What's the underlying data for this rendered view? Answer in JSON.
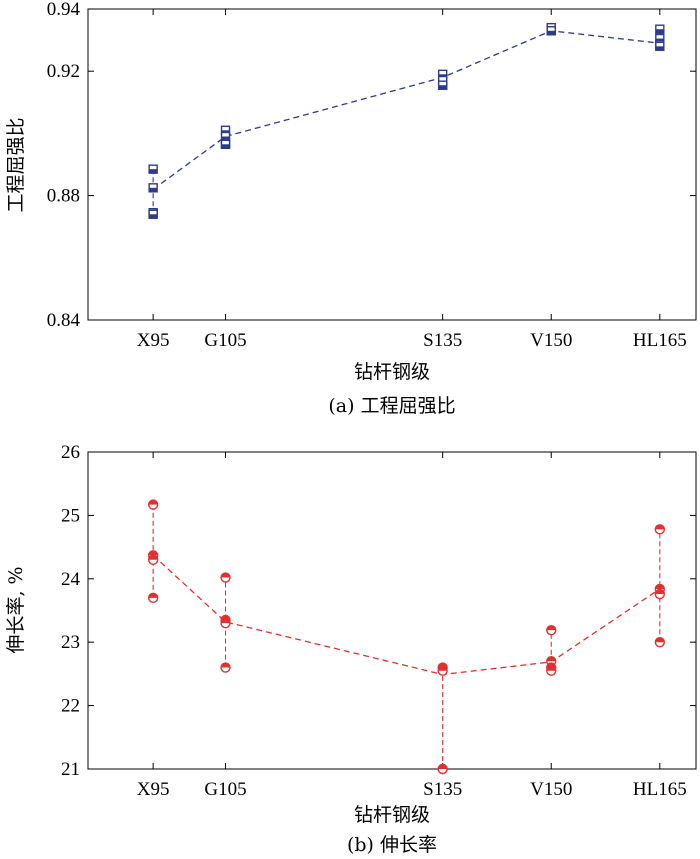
{
  "chart_data": [
    {
      "type": "line",
      "caption": "(a) 工程屈强比",
      "xlabel": "钻杆钢级",
      "ylabel": "工程屈强比",
      "categories": [
        "X95",
        "G105",
        "S135",
        "V150",
        "HL165"
      ],
      "x": [
        95,
        105,
        135,
        150,
        165
      ],
      "xlim": [
        86,
        170
      ],
      "ylim": [
        0.84,
        0.94
      ],
      "yticks": [
        0.84,
        0.88,
        0.92,
        0.94
      ],
      "ytick_labels": [
        "0.84",
        "0.88",
        "0.92",
        "0.94"
      ],
      "grid": false,
      "color": "#2e3a8c",
      "marker": "square",
      "series": [
        {
          "values": [
            0.882,
            0.899,
            0.918,
            0.933,
            0.929
          ]
        }
      ],
      "points": [
        [
          0.8885,
          0.8825,
          0.8745,
          0.874
        ],
        [
          0.901,
          0.899,
          0.8965,
          0.8965
        ],
        [
          0.919,
          0.917,
          0.9155,
          0.9155
        ],
        [
          0.934,
          0.933,
          0.933,
          0.933
        ],
        [
          0.9335,
          0.9305,
          0.9285,
          0.928
        ]
      ]
    },
    {
      "type": "line",
      "caption": "(b) 伸长率",
      "xlabel": "钻杆钢级",
      "ylabel": "伸长率, %",
      "categories": [
        "X95",
        "G105",
        "S135",
        "V150",
        "HL165"
      ],
      "x": [
        95,
        105,
        135,
        150,
        165
      ],
      "xlim": [
        86,
        170
      ],
      "ylim": [
        21,
        26
      ],
      "yticks": [
        21,
        22,
        23,
        24,
        25,
        26
      ],
      "ytick_labels": [
        "21",
        "22",
        "23",
        "24",
        "25",
        "26"
      ],
      "grid": false,
      "color": "#e03030",
      "marker": "circle",
      "series": [
        {
          "values": [
            24.37,
            23.32,
            22.49,
            22.69,
            23.84
          ]
        }
      ],
      "points": [
        [
          25.17,
          24.37,
          24.3,
          23.7
        ],
        [
          24.02,
          23.35,
          23.3,
          22.6
        ],
        [
          22.6,
          22.55,
          21.0,
          21.0
        ],
        [
          23.19,
          22.7,
          22.6,
          22.55
        ],
        [
          24.78,
          23.84,
          23.76,
          23.0
        ]
      ]
    }
  ]
}
